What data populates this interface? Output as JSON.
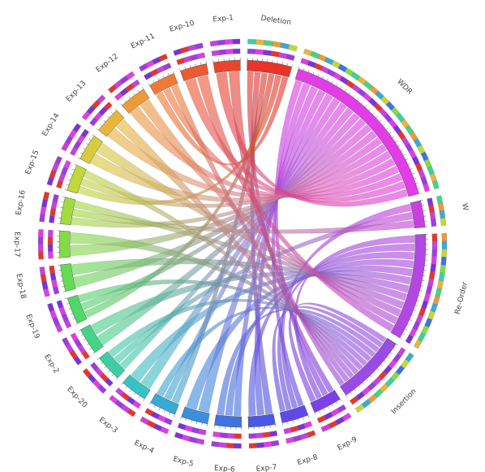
{
  "diagram": {
    "type": "chord",
    "segments": [
      {
        "label": "Deletion",
        "color": "#e8342a",
        "size": 5
      },
      {
        "label": "WDR",
        "color": "#e23ce6",
        "size": 20
      },
      {
        "label": "W",
        "color": "#c940e0",
        "size": 3
      },
      {
        "label": "Re-Order",
        "color": "#b347e3",
        "size": 12
      },
      {
        "label": "Insertion",
        "color": "#9a4be6",
        "size": 8
      },
      {
        "label": "Exp-9",
        "color": "#7d3fe8",
        "size": 3.2
      },
      {
        "label": "Exp-8",
        "color": "#6049e8",
        "size": 3
      },
      {
        "label": "Exp-7",
        "color": "#4a58e6",
        "size": 3
      },
      {
        "label": "Exp-6",
        "color": "#3f73e2",
        "size": 3
      },
      {
        "label": "Exp-5",
        "color": "#3b8fde",
        "size": 3
      },
      {
        "label": "Exp-4",
        "color": "#39aad6",
        "size": 3
      },
      {
        "label": "Exp-3",
        "color": "#37c2c4",
        "size": 3
      },
      {
        "label": "Exp-20",
        "color": "#3ccfa6",
        "size": 3
      },
      {
        "label": "Exp-2",
        "color": "#43d488",
        "size": 3
      },
      {
        "label": "Exp-19",
        "color": "#4ed86a",
        "size": 3
      },
      {
        "label": "Exp-18",
        "color": "#64db52",
        "size": 3
      },
      {
        "label": "Exp-17",
        "color": "#82dc44",
        "size": 3
      },
      {
        "label": "Exp-16",
        "color": "#a2dc3c",
        "size": 3
      },
      {
        "label": "Exp-15",
        "color": "#c0d83a",
        "size": 3
      },
      {
        "label": "Exp-14",
        "color": "#d8cc3a",
        "size": 3
      },
      {
        "label": "Exp-13",
        "color": "#e7b63a",
        "size": 3
      },
      {
        "label": "Exp-12",
        "color": "#ee9a38",
        "size": 3
      },
      {
        "label": "Exp-11",
        "color": "#f07a34",
        "size": 3
      },
      {
        "label": "Exp-10",
        "color": "#ee5a30",
        "size": 3
      },
      {
        "label": "Exp-1",
        "color": "#ea452c",
        "size": 3
      }
    ],
    "ribbons": [
      [
        0,
        5
      ],
      [
        0,
        7
      ],
      [
        0,
        10
      ],
      [
        0,
        14
      ],
      [
        0,
        18
      ],
      [
        0,
        22
      ],
      [
        1,
        5
      ],
      [
        1,
        6
      ],
      [
        1,
        7
      ],
      [
        1,
        8
      ],
      [
        1,
        9
      ],
      [
        1,
        10
      ],
      [
        1,
        11
      ],
      [
        1,
        12
      ],
      [
        1,
        13
      ],
      [
        1,
        14
      ],
      [
        1,
        15
      ],
      [
        1,
        16
      ],
      [
        1,
        17
      ],
      [
        1,
        18
      ],
      [
        1,
        19
      ],
      [
        1,
        20
      ],
      [
        1,
        21
      ],
      [
        1,
        22
      ],
      [
        1,
        23
      ],
      [
        1,
        24
      ],
      [
        2,
        6
      ],
      [
        2,
        12
      ],
      [
        2,
        17
      ],
      [
        3,
        5
      ],
      [
        3,
        6
      ],
      [
        3,
        7
      ],
      [
        3,
        8
      ],
      [
        3,
        9
      ],
      [
        3,
        11
      ],
      [
        3,
        13
      ],
      [
        3,
        15
      ],
      [
        3,
        17
      ],
      [
        3,
        19
      ],
      [
        3,
        21
      ],
      [
        3,
        23
      ],
      [
        4,
        5
      ],
      [
        4,
        6
      ],
      [
        4,
        8
      ],
      [
        4,
        10
      ],
      [
        4,
        12
      ],
      [
        4,
        14
      ],
      [
        4,
        16
      ],
      [
        4,
        18
      ],
      [
        4,
        20
      ],
      [
        4,
        22
      ],
      [
        4,
        24
      ]
    ]
  }
}
